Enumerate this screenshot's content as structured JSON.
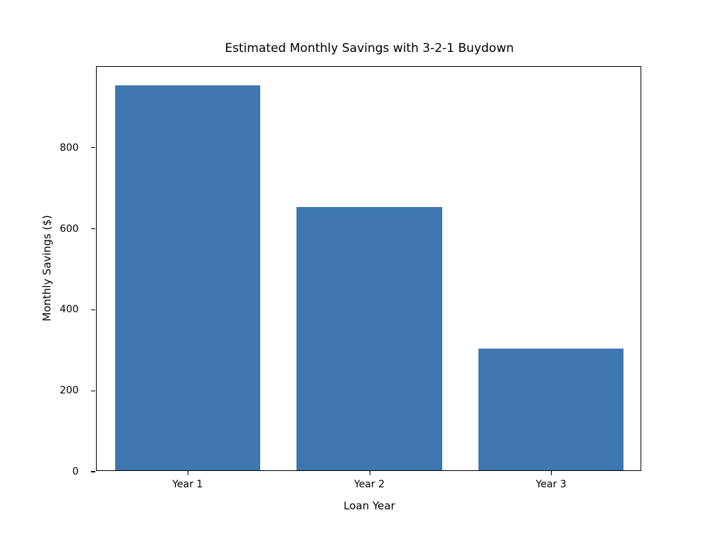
{
  "figure": {
    "background": "#ffffff",
    "frame_color": "#000000",
    "text_color": "#000000"
  },
  "chart_data": {
    "type": "bar",
    "title": "Estimated Monthly Savings with 3-2-1 Buydown",
    "xlabel": "Loan Year",
    "ylabel": "Monthly Savings ($)",
    "categories": [
      "Year 1",
      "Year 2",
      "Year 3"
    ],
    "values": [
      950,
      650,
      300
    ],
    "yticks": [
      0,
      200,
      400,
      600,
      800
    ],
    "ylim": [
      0,
      1000
    ],
    "bar_color": "#3d76b0",
    "bar_width_fraction": 0.8,
    "grid": false,
    "legend_position": "none"
  }
}
